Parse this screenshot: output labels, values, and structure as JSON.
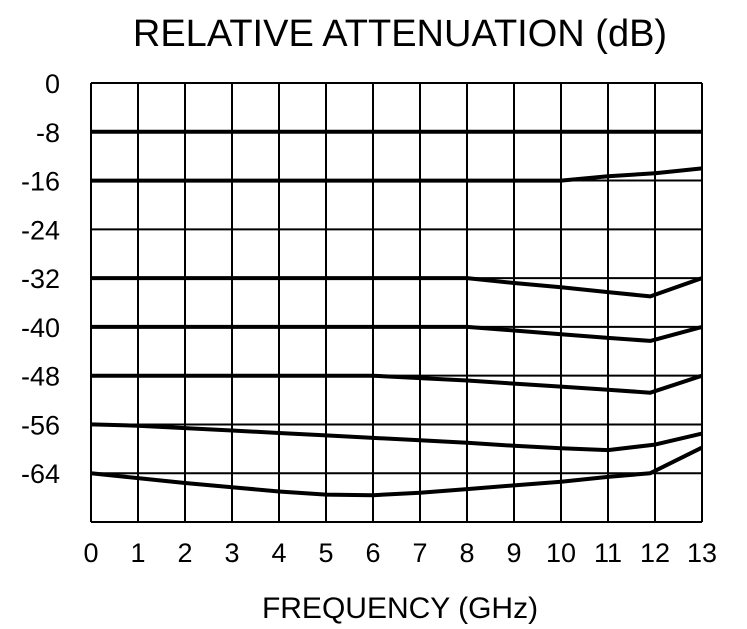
{
  "chart_data": {
    "type": "line",
    "title": "RELATIVE ATTENUATION (dB)",
    "xlabel": "FREQUENCY (GHz)",
    "ylabel": "",
    "xlim": [
      0,
      13
    ],
    "ylim": [
      -72,
      0
    ],
    "x_ticks": [
      "0",
      "1",
      "2",
      "3",
      "4",
      "5",
      "6",
      "7",
      "8",
      "9",
      "10",
      "11",
      "12",
      "13"
    ],
    "y_ticks": [
      "0",
      "-8",
      "-16",
      "-24",
      "-32",
      "-40",
      "-48",
      "-56",
      "-64"
    ],
    "y_tick_values": [
      0,
      -8,
      -16,
      -24,
      -32,
      -40,
      -48,
      -56,
      -64
    ],
    "grid": true,
    "legend": "none",
    "series": [
      {
        "x": [
          0,
          13
        ],
        "values": [
          -8,
          -8
        ]
      },
      {
        "x": [
          0,
          10,
          11,
          12,
          13
        ],
        "values": [
          -16,
          -16,
          -15.3,
          -14.8,
          -14
        ]
      },
      {
        "x": [
          0,
          8,
          9,
          10,
          11,
          11.9,
          13
        ],
        "values": [
          -32,
          -32,
          -32.8,
          -33.5,
          -34.3,
          -35,
          -32
        ]
      },
      {
        "x": [
          0,
          8,
          9,
          10,
          11,
          11.9,
          13
        ],
        "values": [
          -40,
          -40,
          -40.6,
          -41.2,
          -41.8,
          -42.3,
          -40
        ]
      },
      {
        "x": [
          0,
          6,
          7,
          8,
          9,
          10,
          11,
          11.9,
          13
        ],
        "values": [
          -48,
          -48,
          -48.4,
          -48.8,
          -49.3,
          -49.8,
          -50.3,
          -50.8,
          -48
        ]
      },
      {
        "x": [
          0,
          1,
          2,
          3,
          4,
          5,
          6,
          7,
          8,
          9,
          10,
          11,
          12,
          13
        ],
        "values": [
          -56,
          -56.2,
          -56.6,
          -57,
          -57.4,
          -57.8,
          -58.2,
          -58.6,
          -59,
          -59.5,
          -59.9,
          -60.2,
          -59.3,
          -57.5
        ]
      },
      {
        "x": [
          0,
          1,
          2,
          3,
          4,
          5,
          6,
          7,
          8,
          9,
          10,
          11,
          11.9,
          13
        ],
        "values": [
          -64,
          -64.8,
          -65.6,
          -66.3,
          -67,
          -67.5,
          -67.6,
          -67.2,
          -66.6,
          -66,
          -65.4,
          -64.6,
          -64,
          -59.8
        ]
      }
    ]
  }
}
